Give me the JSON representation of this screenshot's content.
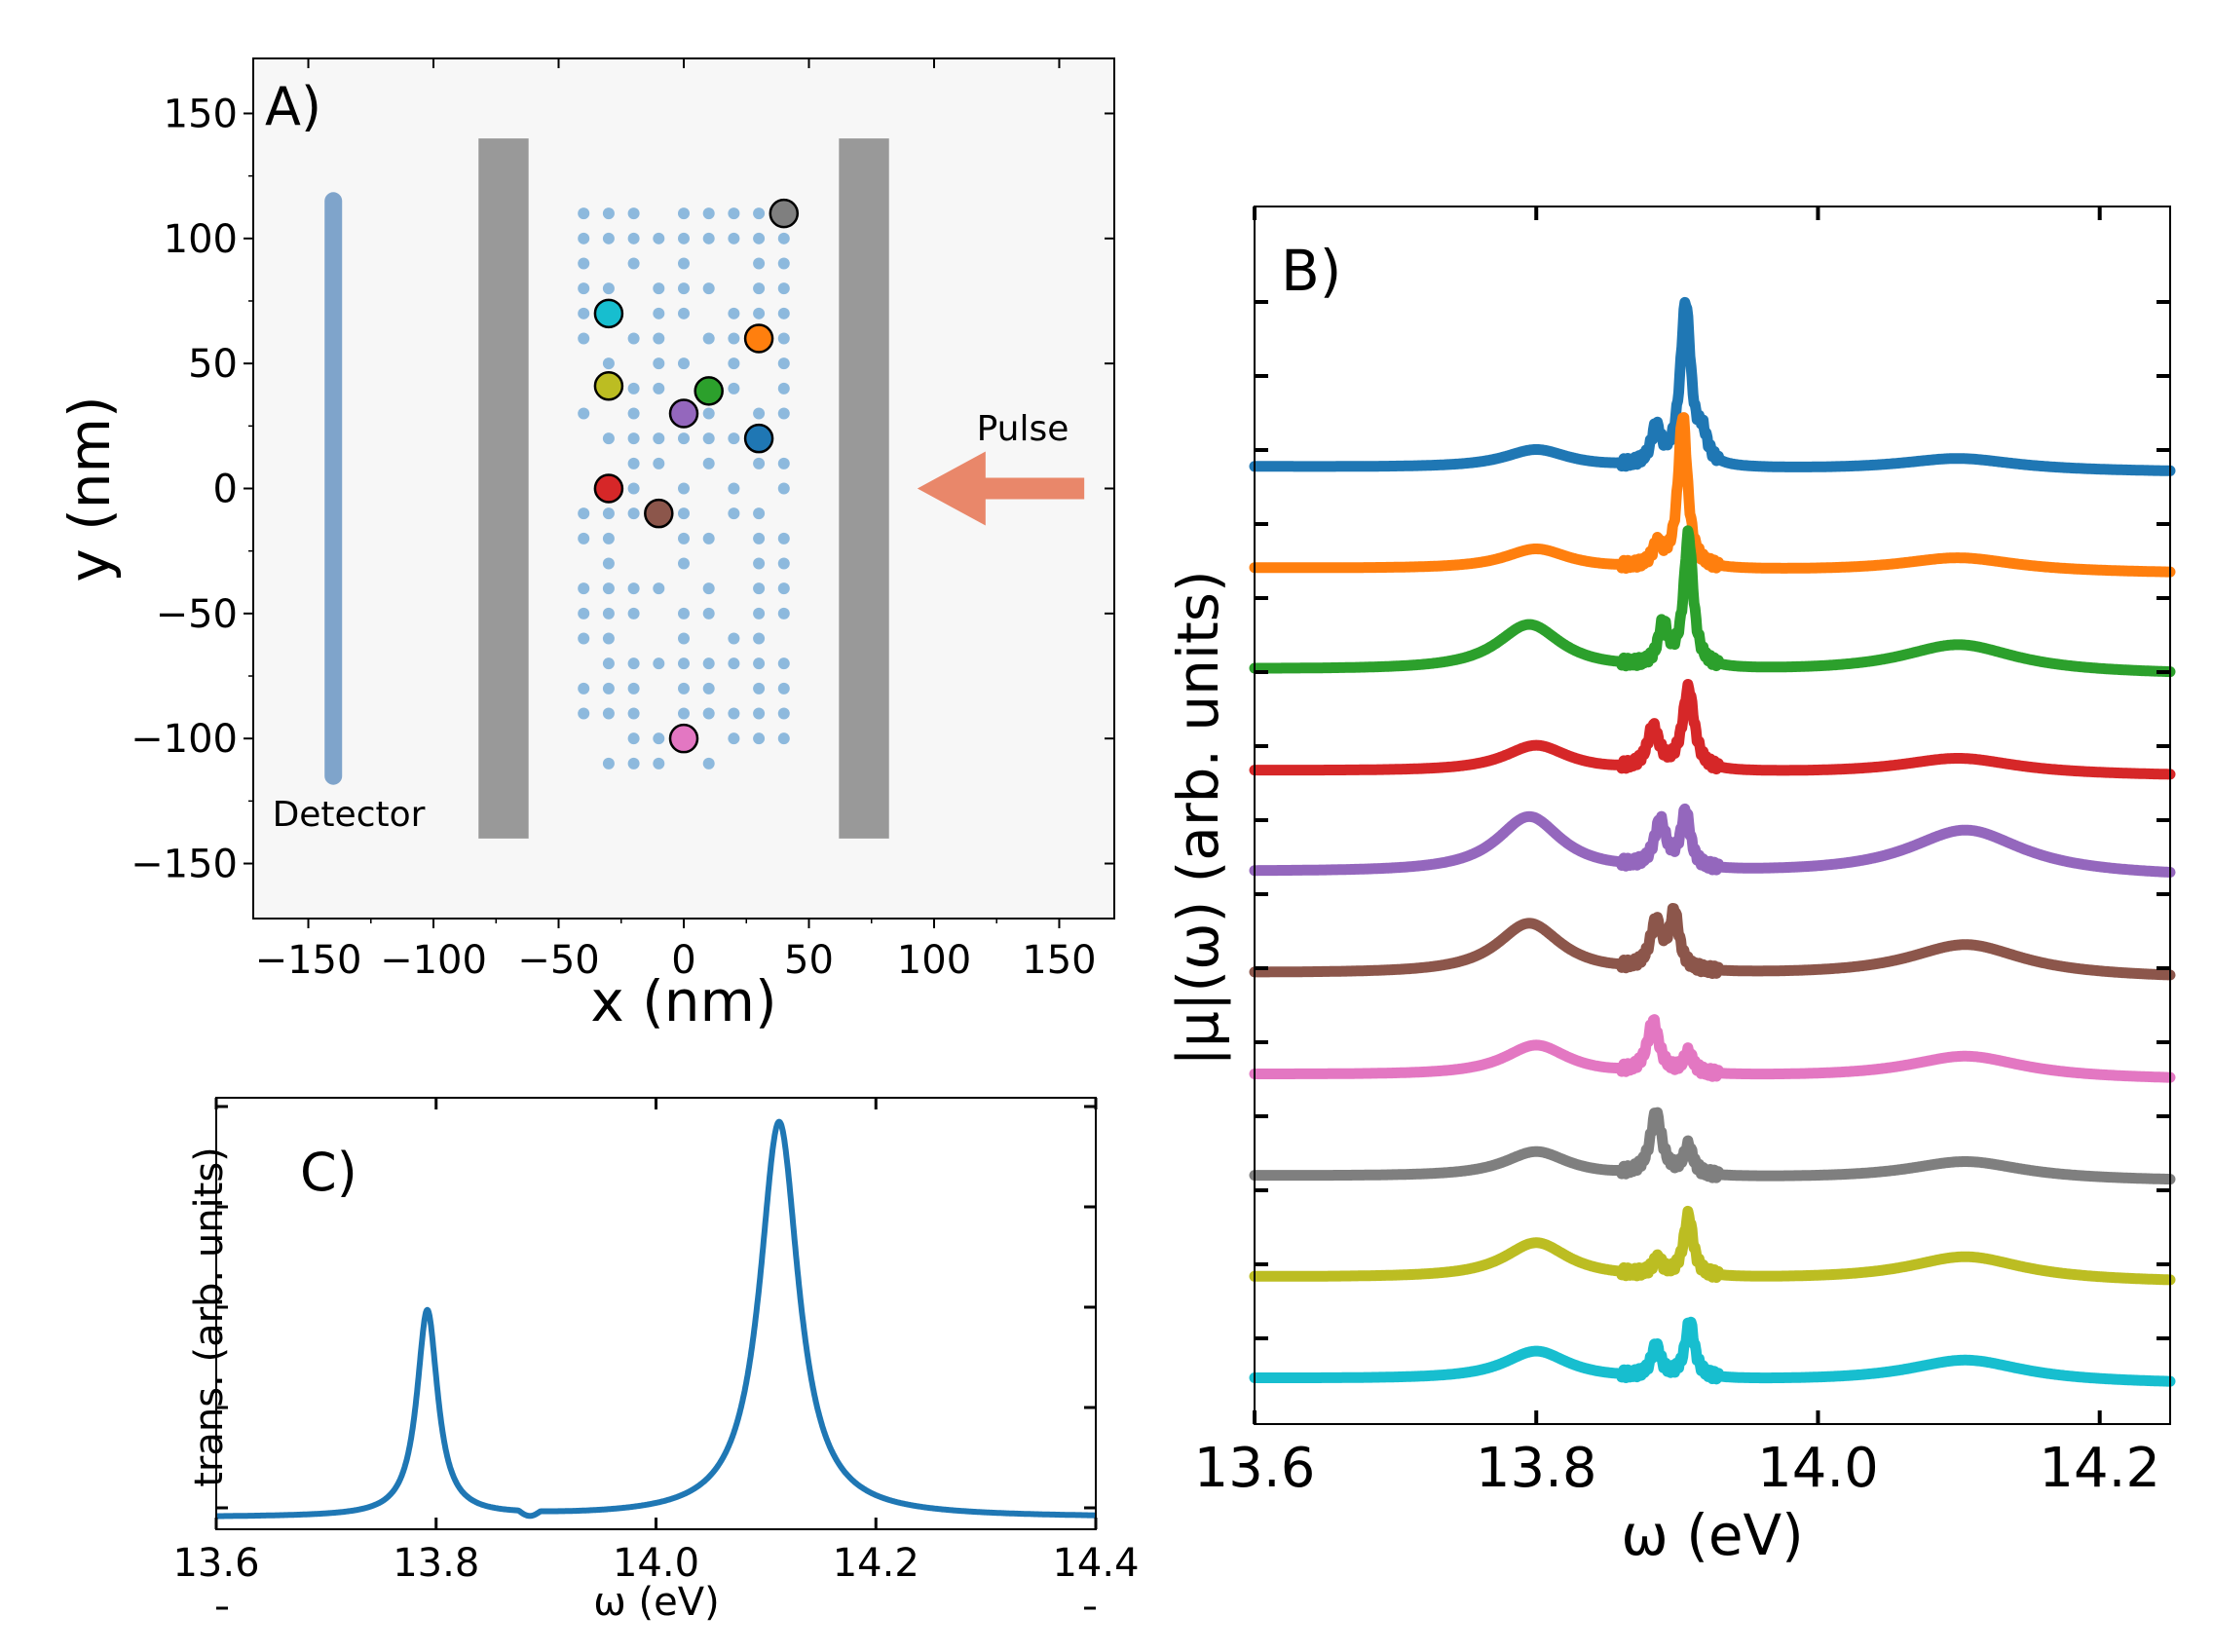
{
  "chart_data": [
    {
      "panel": "A",
      "type": "scatter",
      "label": "A)",
      "xlabel": "x (nm)",
      "ylabel": "y (nm)",
      "xlim": [
        -172,
        172
      ],
      "ylim": [
        -172,
        172
      ],
      "xticks": [
        -150,
        -100,
        -50,
        0,
        50,
        100,
        150
      ],
      "yticks": [
        -150,
        -100,
        -50,
        0,
        50,
        100,
        150
      ],
      "mirrors": [
        {
          "x0": -82,
          "x1": -62,
          "y0": -140,
          "y1": 140
        },
        {
          "x0": 62,
          "x1": 82,
          "y0": -140,
          "y1": 140
        }
      ],
      "detector": {
        "label": "Detector",
        "x": -140,
        "y0": -115,
        "y1": 115
      },
      "pulse": {
        "label": "Pulse",
        "x_from": 160,
        "x_to": 105,
        "y": 0
      },
      "emitter_lattice": {
        "x0": -40,
        "dx": 10,
        "nx": 9,
        "y0": -110,
        "dy": 10,
        "ny": 23
      },
      "probes": [
        {
          "x": 40,
          "y": 110,
          "color": "#7f7f7f"
        },
        {
          "x": -30,
          "y": 70,
          "color": "#17becf"
        },
        {
          "x": 30,
          "y": 60,
          "color": "#ff7f0e"
        },
        {
          "x": -30,
          "y": 41,
          "color": "#bcbd22"
        },
        {
          "x": 10,
          "y": 39,
          "color": "#2ca02c"
        },
        {
          "x": 0,
          "y": 30,
          "color": "#9467bd"
        },
        {
          "x": 30,
          "y": 20,
          "color": "#1f77b4"
        },
        {
          "x": -30,
          "y": 0,
          "color": "#d62728"
        },
        {
          "x": -10,
          "y": -10,
          "color": "#8c564b"
        },
        {
          "x": 0,
          "y": -100,
          "color": "#e377c2"
        }
      ]
    },
    {
      "panel": "B",
      "type": "line",
      "label": "B)",
      "xlabel": "ω (eV)",
      "ylabel": "|μ|(ω) (arb. units)",
      "xlim": [
        13.6,
        14.25
      ],
      "xticks": [
        13.6,
        13.8,
        14.0,
        14.2
      ],
      "series": [
        {
          "color": "#1f77b4",
          "baseline": 9.0,
          "peaks": [
            [
              13.8,
              0.18,
              0.028
            ],
            [
              14.1,
              0.12,
              0.05
            ],
            [
              13.885,
              0.35,
              0.004
            ],
            [
              13.906,
              1.6,
              0.0045
            ],
            [
              13.918,
              0.25,
              0.004
            ]
          ]
        },
        {
          "color": "#ff7f0e",
          "baseline": 8.0,
          "peaks": [
            [
              13.8,
              0.2,
              0.028
            ],
            [
              14.1,
              0.14,
              0.05
            ],
            [
              13.886,
              0.2,
              0.004
            ],
            [
              13.904,
              1.5,
              0.004
            ]
          ]
        },
        {
          "color": "#2ca02c",
          "baseline": 7.0,
          "peaks": [
            [
              13.795,
              0.45,
              0.028
            ],
            [
              14.1,
              0.28,
              0.05
            ],
            [
              13.89,
              0.4,
              0.004
            ],
            [
              13.908,
              1.3,
              0.004
            ]
          ]
        },
        {
          "color": "#d62728",
          "baseline": 6.0,
          "peaks": [
            [
              13.8,
              0.26,
              0.028
            ],
            [
              14.1,
              0.16,
              0.05
            ],
            [
              13.883,
              0.4,
              0.005
            ],
            [
              13.908,
              0.8,
              0.005
            ]
          ]
        },
        {
          "color": "#9467bd",
          "baseline": 5.0,
          "peaks": [
            [
              13.795,
              0.55,
              0.028
            ],
            [
              14.105,
              0.45,
              0.05
            ],
            [
              13.888,
              0.45,
              0.005
            ],
            [
              13.906,
              0.55,
              0.004
            ]
          ]
        },
        {
          "color": "#8c564b",
          "baseline": 4.0,
          "peaks": [
            [
              13.795,
              0.5,
              0.028
            ],
            [
              14.105,
              0.32,
              0.05
            ],
            [
              13.885,
              0.45,
              0.005
            ],
            [
              13.898,
              0.55,
              0.004
            ]
          ]
        },
        {
          "color": "#e377c2",
          "baseline": 3.0,
          "peaks": [
            [
              13.8,
              0.3,
              0.028
            ],
            [
              14.105,
              0.22,
              0.05
            ],
            [
              13.883,
              0.5,
              0.005
            ],
            [
              13.908,
              0.2,
              0.004
            ]
          ]
        },
        {
          "color": "#7f7f7f",
          "baseline": 2.0,
          "peaks": [
            [
              13.8,
              0.25,
              0.028
            ],
            [
              14.105,
              0.18,
              0.05
            ],
            [
              13.885,
              0.6,
              0.005
            ],
            [
              13.908,
              0.28,
              0.004
            ]
          ]
        },
        {
          "color": "#bcbd22",
          "baseline": 1.0,
          "peaks": [
            [
              13.8,
              0.35,
              0.028
            ],
            [
              14.105,
              0.24,
              0.05
            ],
            [
              13.886,
              0.15,
              0.004
            ],
            [
              13.908,
              0.6,
              0.004
            ]
          ]
        },
        {
          "color": "#17becf",
          "baseline": 0.0,
          "peaks": [
            [
              13.8,
              0.28,
              0.028
            ],
            [
              14.105,
              0.22,
              0.05
            ],
            [
              13.885,
              0.3,
              0.004
            ],
            [
              13.909,
              0.55,
              0.004
            ]
          ]
        }
      ]
    },
    {
      "panel": "C",
      "type": "line",
      "label": "C)",
      "xlabel": "ω (eV)",
      "ylabel": "trans. (arb. units)",
      "xlim": [
        13.6,
        14.4
      ],
      "xticks": [
        13.6,
        13.8,
        14.0,
        14.2,
        14.4
      ],
      "xtick_labels": [
        "13.6",
        "13.8",
        "14.0",
        "14.2",
        "14.4"
      ],
      "series": [
        {
          "color": "#1f77b4",
          "peaks": [
            [
              13.792,
              0.5,
              0.0115
            ],
            [
              14.112,
              0.96,
              0.0215
            ]
          ]
        }
      ]
    }
  ]
}
